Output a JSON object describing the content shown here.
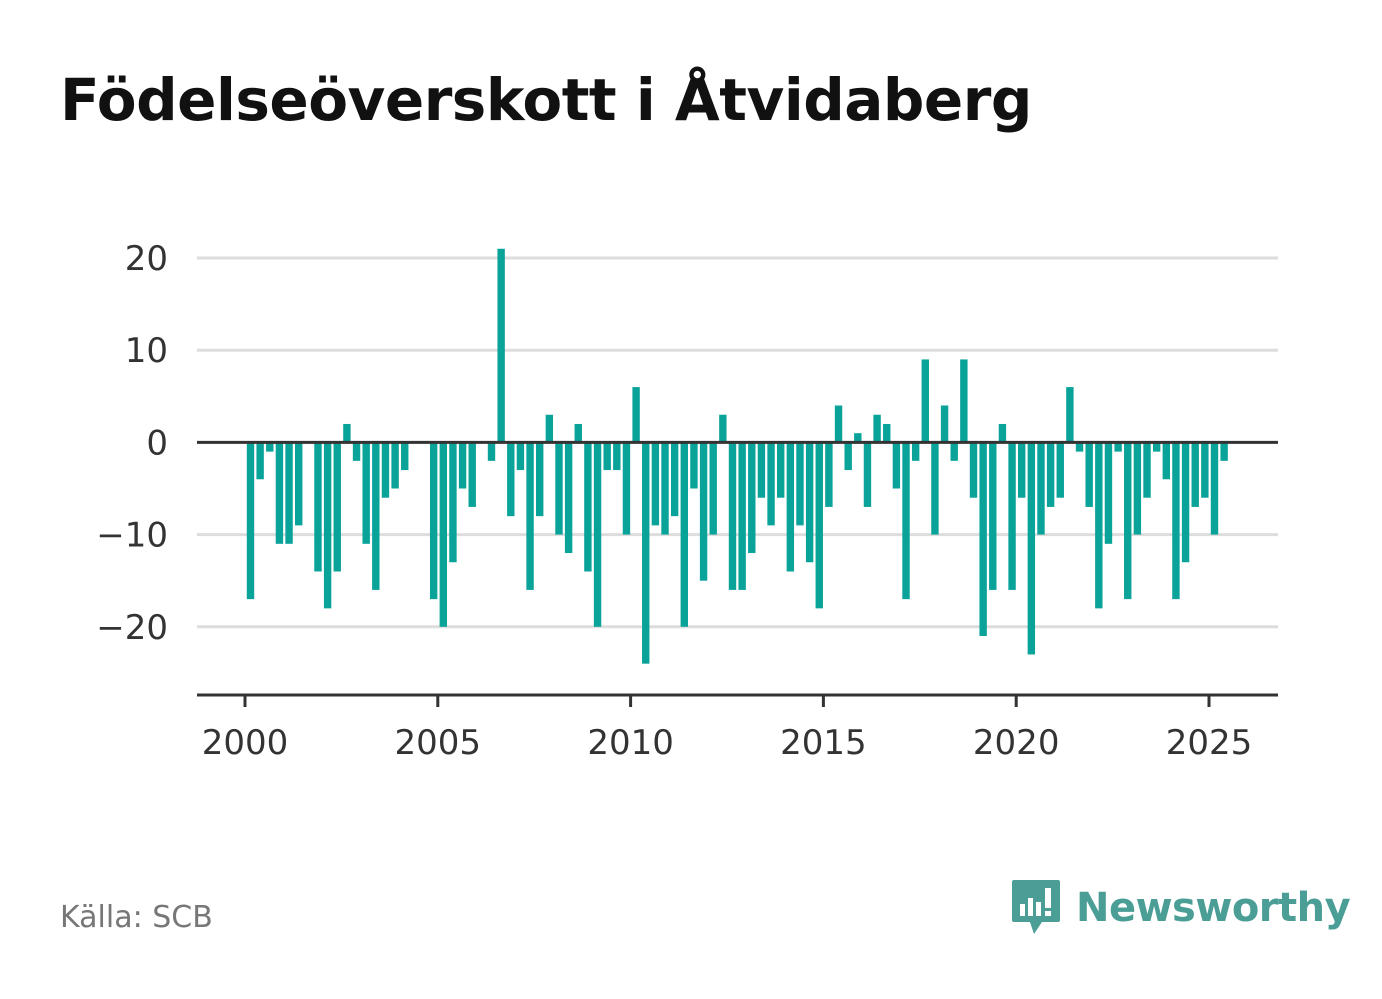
{
  "title": "Födelseöverskott i Åtvidaberg",
  "source": "Källa: SCB",
  "brand": "Newsworthy",
  "colors": {
    "bar": "#0aa39a",
    "bar_highlight": "#1f9a90",
    "grid": "#dddddd",
    "axis": "#333333",
    "brand": "#4a9e96"
  },
  "chart_data": {
    "type": "bar",
    "title": "Födelseöverskott i Åtvidaberg",
    "xlabel": "",
    "ylabel": "",
    "ylim": [
      -27,
      24
    ],
    "xlim": [
      1999.75,
      2027.5
    ],
    "y_ticks": [
      20,
      10,
      0,
      -10,
      -20
    ],
    "y_tick_labels": [
      "20",
      "10",
      "0",
      "−10",
      "−20"
    ],
    "x_ticks": [
      2000,
      2005,
      2010,
      2015,
      2020,
      2025
    ],
    "x_tick_labels": [
      "2000",
      "2005",
      "2010",
      "2015",
      "2020",
      "2025"
    ],
    "grid": true,
    "frequency": "quarterly",
    "start": "2000 Q1",
    "x": [
      "2000 Q1",
      "2000 Q2",
      "2000 Q3",
      "2000 Q4",
      "2001 Q1",
      "2001 Q2",
      "2001 Q3",
      "2001 Q4",
      "2002 Q1",
      "2002 Q2",
      "2002 Q3",
      "2002 Q4",
      "2003 Q1",
      "2003 Q2",
      "2003 Q3",
      "2003 Q4",
      "2004 Q1",
      "2004 Q2",
      "2004 Q3",
      "2004 Q4",
      "2005 Q1",
      "2005 Q2",
      "2005 Q3",
      "2005 Q4",
      "2006 Q1",
      "2006 Q2",
      "2006 Q3",
      "2006 Q4",
      "2007 Q1",
      "2007 Q2",
      "2007 Q3",
      "2007 Q4",
      "2008 Q1",
      "2008 Q2",
      "2008 Q3",
      "2008 Q4",
      "2009 Q1",
      "2009 Q2",
      "2009 Q3",
      "2009 Q4",
      "2010 Q1",
      "2010 Q2",
      "2010 Q3",
      "2010 Q4",
      "2011 Q1",
      "2011 Q2",
      "2011 Q3",
      "2011 Q4",
      "2012 Q1",
      "2012 Q2",
      "2012 Q3",
      "2012 Q4",
      "2013 Q1",
      "2013 Q2",
      "2013 Q3",
      "2013 Q4",
      "2014 Q1",
      "2014 Q2",
      "2014 Q3",
      "2014 Q4",
      "2015 Q1",
      "2015 Q2",
      "2015 Q3",
      "2015 Q4",
      "2016 Q1",
      "2016 Q2",
      "2016 Q3",
      "2016 Q4",
      "2017 Q1",
      "2017 Q2",
      "2017 Q3",
      "2017 Q4",
      "2018 Q1",
      "2018 Q2",
      "2018 Q3",
      "2018 Q4",
      "2019 Q1",
      "2019 Q2",
      "2019 Q3",
      "2019 Q4",
      "2020 Q1",
      "2020 Q2",
      "2020 Q3",
      "2020 Q4",
      "2021 Q1",
      "2021 Q2",
      "2021 Q3",
      "2021 Q4",
      "2022 Q1",
      "2022 Q2",
      "2022 Q3",
      "2022 Q4",
      "2023 Q1",
      "2023 Q2",
      "2023 Q3",
      "2023 Q4",
      "2024 Q1",
      "2024 Q2",
      "2024 Q3",
      "2024 Q4",
      "2025 Q1",
      "2025 Q2"
    ],
    "values": [
      -17,
      -4,
      -1,
      -11,
      -11,
      -9,
      0,
      -14,
      -18,
      -14,
      2,
      -2,
      -11,
      -16,
      -6,
      -5,
      -3,
      0,
      0,
      -17,
      -20,
      -13,
      -5,
      -7,
      0,
      -2,
      21,
      -8,
      -3,
      -16,
      -8,
      3,
      -10,
      -12,
      2,
      -14,
      -20,
      -3,
      -3,
      -10,
      6,
      -24,
      -9,
      -10,
      -8,
      -20,
      -5,
      -15,
      -10,
      3,
      -16,
      -16,
      -12,
      -6,
      -9,
      -6,
      -14,
      -9,
      -13,
      -18,
      -7,
      4,
      -3,
      1,
      -7,
      3,
      2,
      -5,
      -17,
      -2,
      9,
      -10,
      4,
      -2,
      9,
      -6,
      -21,
      -16,
      2,
      -16,
      -6,
      -23,
      -10,
      -7,
      -6,
      6,
      -1,
      -7,
      -18,
      -11,
      -1,
      -17,
      -10,
      -6,
      -1,
      -4,
      -17,
      -13,
      -7,
      -6,
      -10,
      -2
    ]
  }
}
